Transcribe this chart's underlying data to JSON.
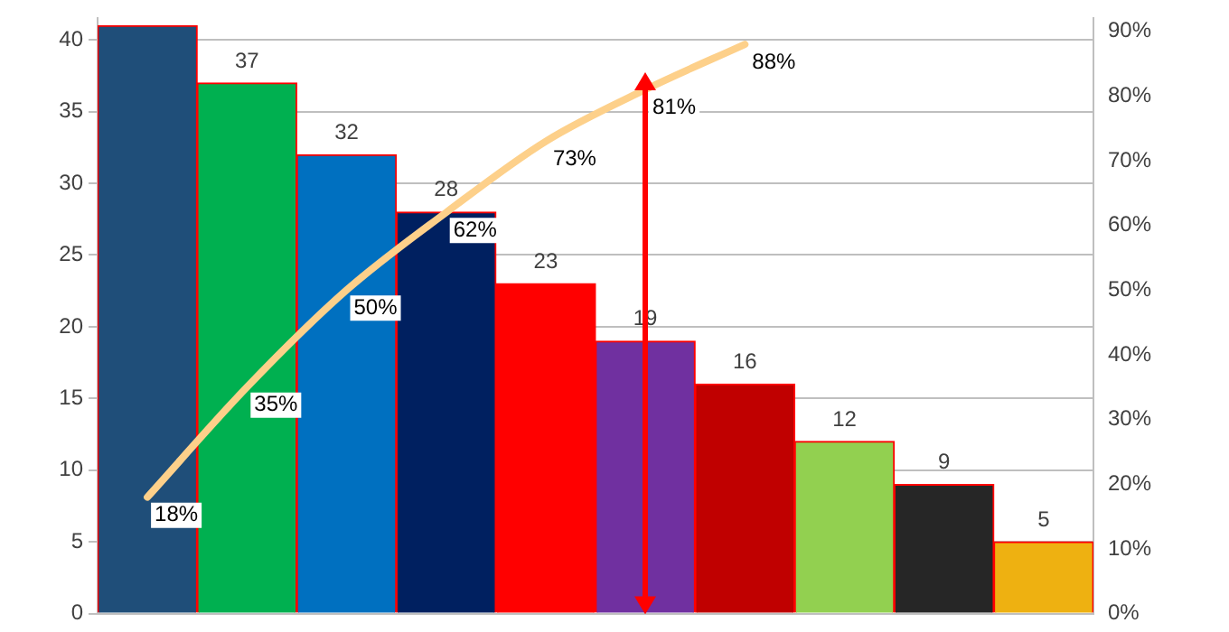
{
  "chart_data": {
    "type": "bar",
    "categories": [
      null,
      null,
      null,
      null,
      null,
      null,
      null,
      null,
      null,
      null
    ],
    "series": [
      {
        "colors": [
          "#1f4e79",
          "#00b050",
          "#0070c0",
          "#002060",
          "#ff0000",
          "#7030a0",
          "#c00000",
          "#92d050",
          "#262626",
          "#eeb111"
        ],
        "values": [
          41,
          37,
          32,
          28,
          23,
          19,
          16,
          12,
          9,
          5
        ],
        "value_labels": [
          null,
          "37",
          "32",
          "28",
          "23",
          "19",
          "16",
          "12",
          "9",
          "5"
        ]
      },
      {
        "type": "line",
        "axis": "y2",
        "color": "#fdd08a",
        "values": [
          18,
          35,
          50,
          62,
          73,
          81,
          88,
          null,
          null,
          null
        ],
        "value_labels": [
          "18%",
          "35%",
          "50%",
          "62%",
          "73%",
          "81%",
          "88%",
          null,
          null,
          null
        ]
      }
    ],
    "ylim": [
      0,
      41.5
    ],
    "yticks": [
      0,
      5,
      10,
      15,
      20,
      25,
      30,
      35,
      40
    ],
    "y2lim": [
      0,
      92
    ],
    "y2ticks": [
      {
        "value": 0,
        "label": "0%"
      },
      {
        "value": 10,
        "label": "10%"
      },
      {
        "value": 20,
        "label": "20%"
      },
      {
        "value": 30,
        "label": "30%"
      },
      {
        "value": 40,
        "label": "40%"
      },
      {
        "value": 50,
        "label": "50%"
      },
      {
        "value": 60,
        "label": "60%"
      },
      {
        "value": 70,
        "label": "70%"
      },
      {
        "value": 80,
        "label": "80%"
      },
      {
        "value": 90,
        "label": "90%"
      }
    ],
    "grid": "y",
    "legend": false,
    "marker": "none",
    "tick_labels": "y"
  }
}
